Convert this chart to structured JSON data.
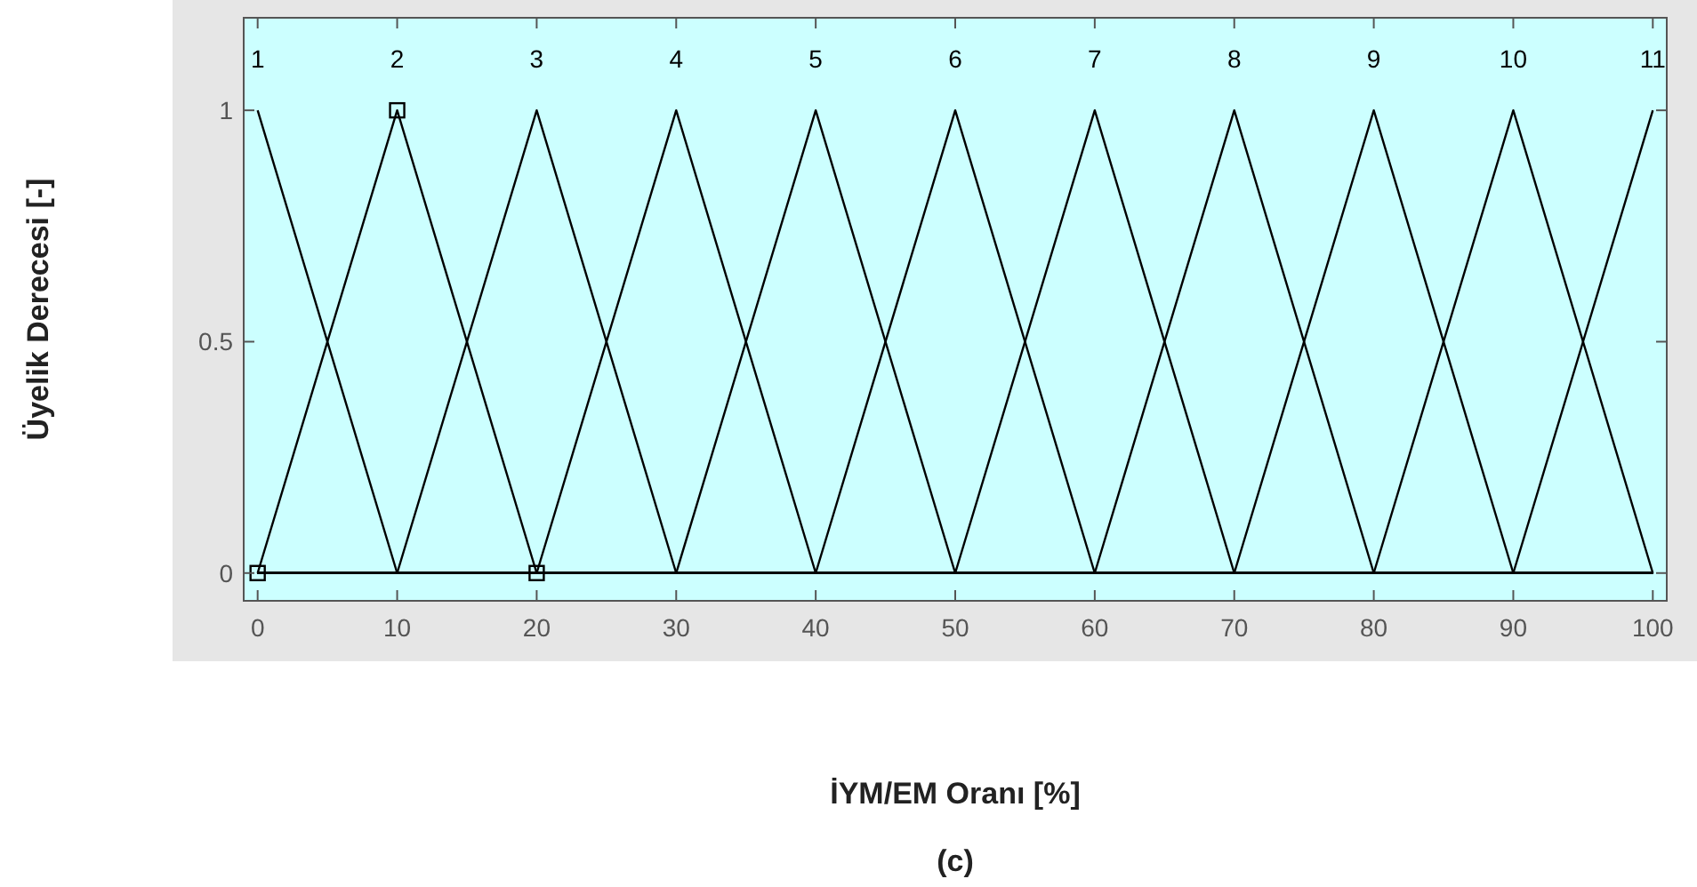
{
  "chart_data": {
    "type": "line",
    "xlabel": "İYM/EM Oranı [%]",
    "ylabel": "Üyelik Derecesi [-]",
    "annotations": [
      "(c)"
    ],
    "x": [
      0,
      10,
      20,
      30,
      40,
      50,
      60,
      70,
      80,
      90,
      100
    ],
    "xlim": [
      -1,
      101
    ],
    "ylim": [
      -0.06,
      1.2
    ],
    "xticks": [
      0,
      10,
      20,
      30,
      40,
      50,
      60,
      70,
      80,
      90,
      100
    ],
    "yticks": [
      0,
      0.5,
      1
    ],
    "grid": false,
    "marker": "none",
    "line_style": "solid",
    "series": [
      {
        "name": "1",
        "color": "#000000",
        "values": [
          1,
          0,
          0,
          0,
          0,
          0,
          0,
          0,
          0,
          0,
          0
        ]
      },
      {
        "name": "2",
        "color": "#000000",
        "x": [
          0,
          10,
          20
        ],
        "values": [
          0,
          1,
          0
        ],
        "marker": "square"
      },
      {
        "name": "3",
        "color": "#000000",
        "values": [
          0,
          0,
          1,
          0,
          0,
          0,
          0,
          0,
          0,
          0,
          0
        ]
      },
      {
        "name": "4",
        "color": "#000000",
        "values": [
          0,
          0,
          0,
          1,
          0,
          0,
          0,
          0,
          0,
          0,
          0
        ]
      },
      {
        "name": "5",
        "color": "#000000",
        "values": [
          0,
          0,
          0,
          0,
          1,
          0,
          0,
          0,
          0,
          0,
          0
        ]
      },
      {
        "name": "6",
        "color": "#000000",
        "values": [
          0,
          0,
          0,
          0,
          0,
          1,
          0,
          0,
          0,
          0,
          0
        ]
      },
      {
        "name": "7",
        "color": "#000000",
        "values": [
          0,
          0,
          0,
          0,
          0,
          0,
          1,
          0,
          0,
          0,
          0
        ]
      },
      {
        "name": "8",
        "color": "#000000",
        "values": [
          0,
          0,
          0,
          0,
          0,
          0,
          0,
          1,
          0,
          0,
          0
        ]
      },
      {
        "name": "9",
        "color": "#000000",
        "values": [
          0,
          0,
          0,
          0,
          0,
          0,
          0,
          0,
          1,
          0,
          0
        ]
      },
      {
        "name": "10",
        "color": "#000000",
        "values": [
          0,
          0,
          0,
          0,
          0,
          0,
          0,
          0,
          0,
          1,
          0
        ]
      },
      {
        "name": "11",
        "color": "#000000",
        "values": [
          0,
          0,
          0,
          0,
          0,
          0,
          0,
          0,
          0,
          0,
          1
        ]
      }
    ]
  }
}
